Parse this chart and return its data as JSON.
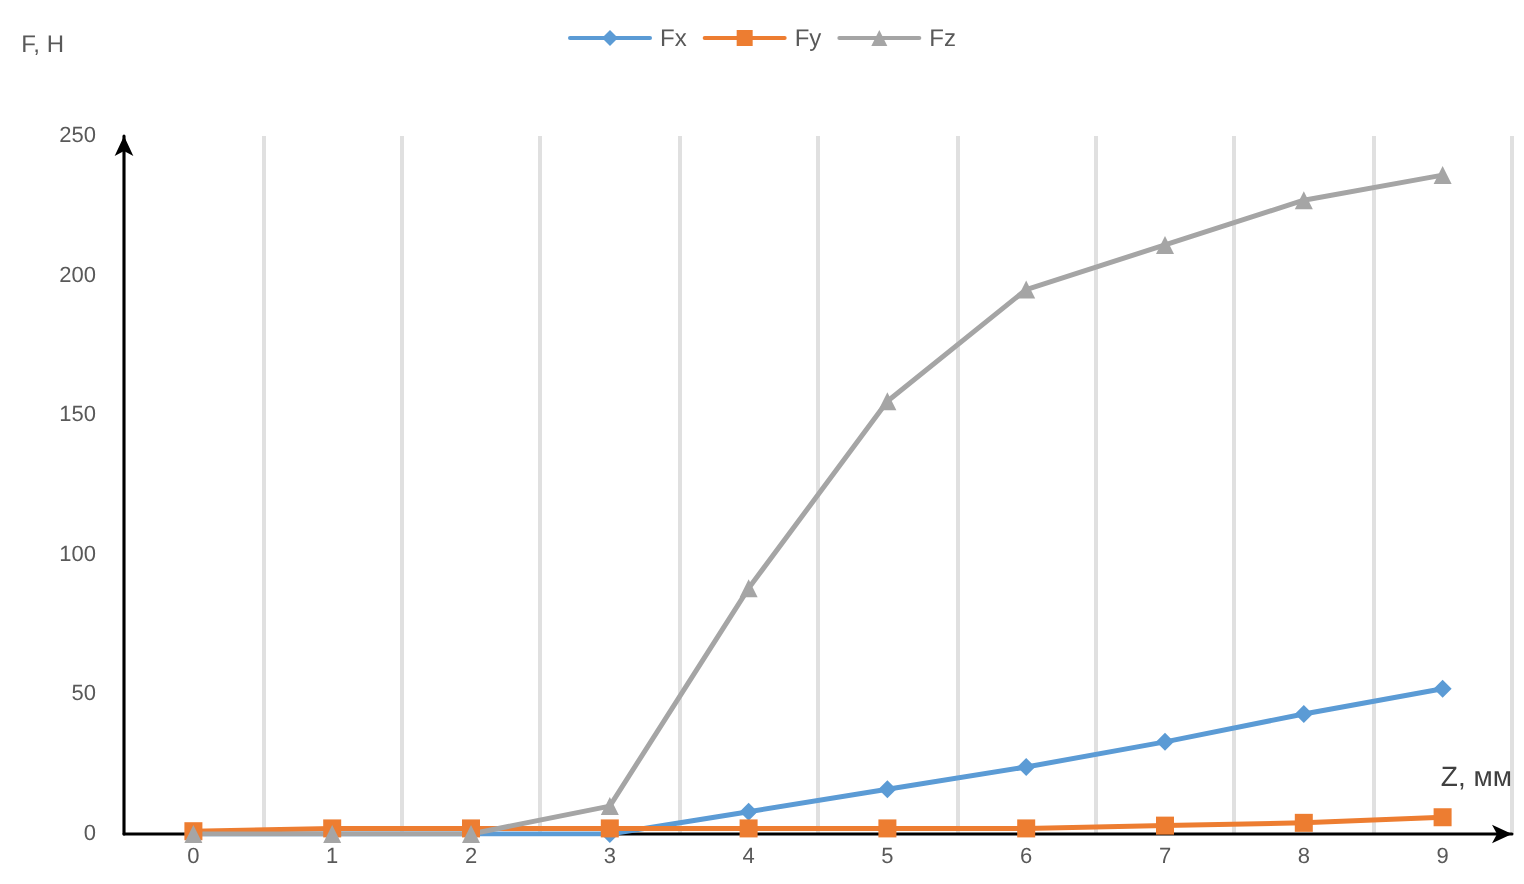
{
  "chart_data": {
    "type": "line",
    "xlabel": "Z, мм",
    "ylabel": "F, H",
    "categories": [
      "0",
      "1",
      "2",
      "3",
      "4",
      "5",
      "6",
      "7",
      "8",
      "9"
    ],
    "series": [
      {
        "name": "Fx",
        "color": "#5b9bd5",
        "marker": "diamond",
        "values": [
          0,
          0,
          0,
          0,
          8,
          16,
          24,
          33,
          43,
          52
        ]
      },
      {
        "name": "Fy",
        "color": "#ed7d31",
        "marker": "square",
        "values": [
          1,
          2,
          2,
          2,
          2,
          2,
          2,
          3,
          4,
          6
        ]
      },
      {
        "name": "Fz",
        "color": "#a5a5a5",
        "marker": "triangle",
        "values": [
          0,
          0,
          0,
          10,
          88,
          155,
          195,
          211,
          227,
          236
        ]
      }
    ],
    "ylim": [
      0,
      250
    ],
    "yticks": [
      0,
      50,
      100,
      150,
      200,
      250
    ],
    "grid": "x",
    "legend": "top"
  }
}
